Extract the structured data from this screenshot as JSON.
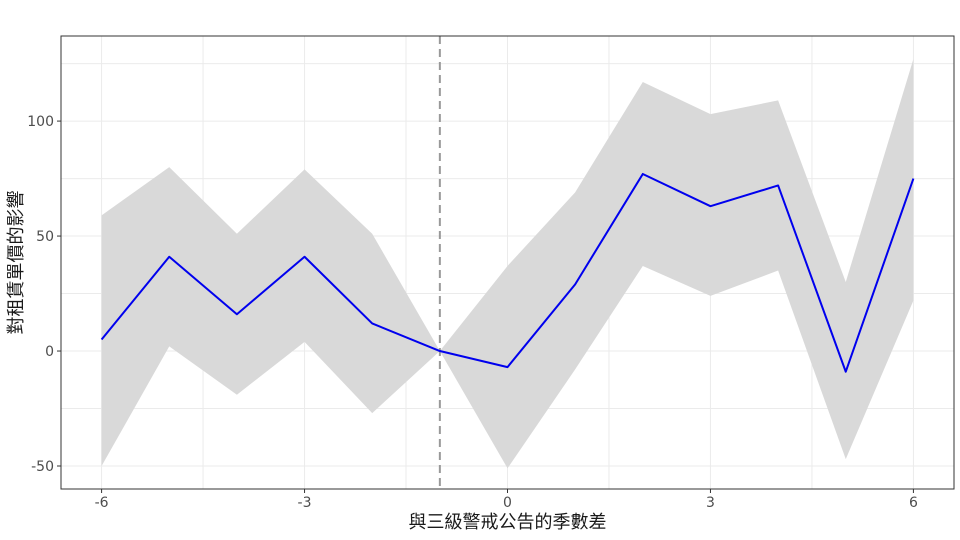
{
  "chart_data": {
    "type": "line",
    "title": "",
    "xlabel": "與三級警戒公告的季數差",
    "ylabel": "對租賃單價的影響",
    "x": [
      -6,
      -5,
      -4,
      -3,
      -2,
      -1,
      0,
      1,
      2,
      3,
      4,
      5,
      6
    ],
    "series": [
      {
        "values": [
          5,
          41,
          16,
          41,
          12,
          0,
          -7,
          29,
          77,
          63,
          72,
          -9,
          75
        ],
        "lower": [
          -50,
          2,
          -19,
          4,
          -27,
          0,
          -51,
          -8,
          37,
          24,
          35,
          -47,
          22
        ],
        "upper": [
          59,
          80,
          51,
          79,
          51,
          0,
          37,
          69,
          117,
          103,
          109,
          30,
          127
        ],
        "color": "#0000ee"
      }
    ],
    "band_color": "#d9d9d9",
    "reference_line": {
      "x": -1,
      "style": "dashed",
      "color": "#999999"
    },
    "xlim": [
      -6.6,
      6.6
    ],
    "ylim": [
      -60,
      137
    ],
    "xticks": [
      -6,
      -3,
      0,
      3,
      6
    ],
    "xtick_labels": [
      "-6",
      "-3",
      "0",
      "3",
      "6"
    ],
    "yticks": [
      -50,
      0,
      50,
      100
    ],
    "ytick_labels": [
      "-50",
      "0",
      "50",
      "100"
    ],
    "grid": true
  }
}
